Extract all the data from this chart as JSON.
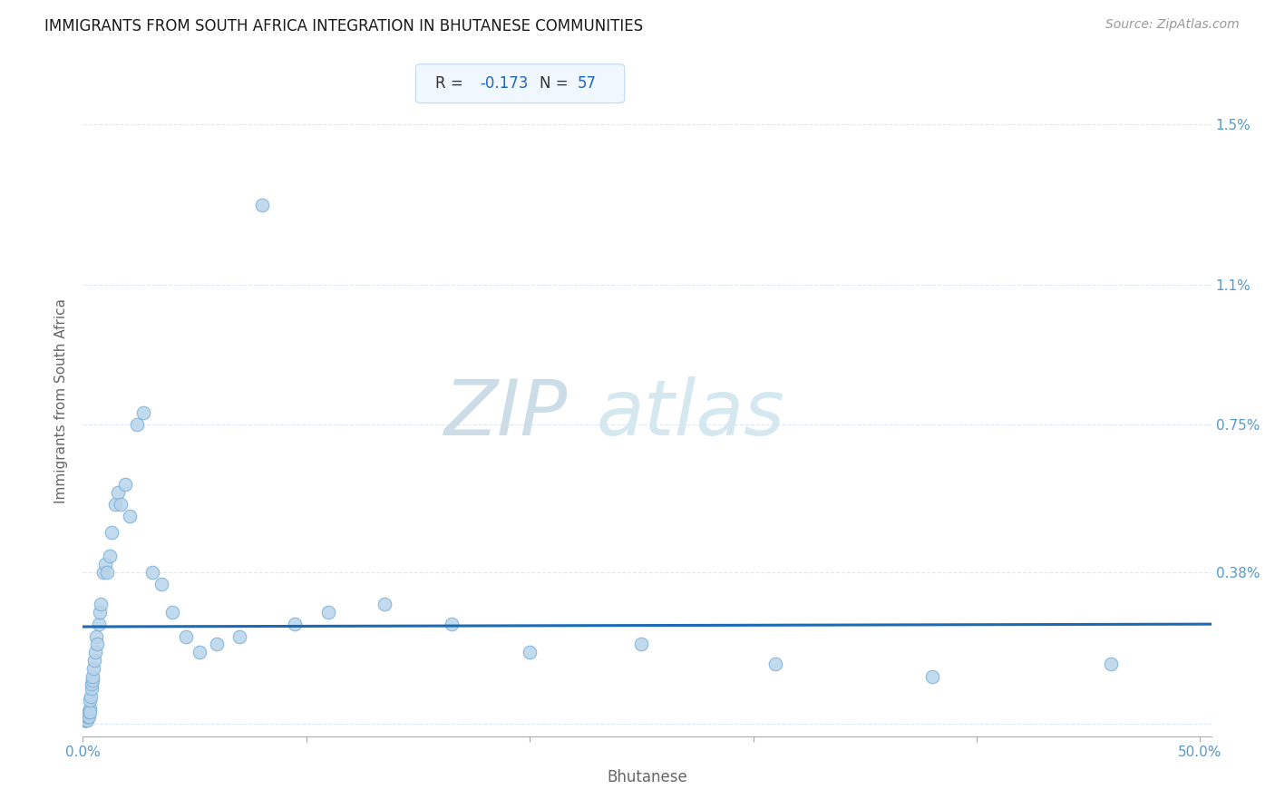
{
  "title": "IMMIGRANTS FROM SOUTH AFRICA INTEGRATION IN BHUTANESE COMMUNITIES",
  "source": "Source: ZipAtlas.com",
  "xlabel": "Bhutanese",
  "ylabel": "Immigrants from South Africa",
  "R_val": "-0.173",
  "N_val": "57",
  "xlim": [
    0.0,
    0.505
  ],
  "ylim": [
    -0.0003,
    0.0165
  ],
  "ytick_vals": [
    0.0,
    0.0038,
    0.0075,
    0.011,
    0.015
  ],
  "ytick_labels": [
    "",
    "0.38%",
    "0.75%",
    "1.1%",
    "1.5%"
  ],
  "xtick_vals": [
    0.0,
    0.1,
    0.2,
    0.3,
    0.4,
    0.5
  ],
  "xtick_labels": [
    "0.0%",
    "",
    "",
    "",
    "",
    "50.0%"
  ],
  "scatter_color": "#b8d4ea",
  "scatter_edge_color": "#7ab0d8",
  "line_color": "#1a6ab5",
  "title_color": "#1a1a1a",
  "axis_label_color": "#666666",
  "tick_label_color": "#5599cc",
  "grid_color": "#dde8f4",
  "annotation_box_color": "#f0f7ff",
  "annotation_border_color": "#c0d8f0",
  "scatter_x": [
    0.0005,
    0.0007,
    0.001,
    0.0012,
    0.0015,
    0.0015,
    0.0018,
    0.002,
    0.0022,
    0.0025,
    0.0025,
    0.0028,
    0.003,
    0.003,
    0.0032,
    0.0035,
    0.0038,
    0.004,
    0.0042,
    0.0045,
    0.0048,
    0.005,
    0.0055,
    0.006,
    0.0065,
    0.007,
    0.0075,
    0.008,
    0.009,
    0.01,
    0.011,
    0.012,
    0.013,
    0.0145,
    0.0155,
    0.017,
    0.019,
    0.021,
    0.024,
    0.027,
    0.031,
    0.035,
    0.04,
    0.046,
    0.052,
    0.06,
    0.07,
    0.08,
    0.095,
    0.11,
    0.135,
    0.165,
    0.2,
    0.25,
    0.31,
    0.38,
    0.46
  ],
  "scatter_y": [
    0.0001,
    0.0001,
    0.0001,
    0.0001,
    0.0001,
    0.0001,
    0.0001,
    0.0002,
    0.0002,
    0.0003,
    0.0002,
    0.0003,
    0.0004,
    0.0003,
    0.0006,
    0.0007,
    0.0009,
    0.001,
    0.0011,
    0.0012,
    0.0014,
    0.0016,
    0.0018,
    0.0022,
    0.002,
    0.0025,
    0.0028,
    0.003,
    0.0038,
    0.004,
    0.0038,
    0.0042,
    0.0048,
    0.0055,
    0.0058,
    0.0055,
    0.006,
    0.0052,
    0.0075,
    0.0078,
    0.0038,
    0.0035,
    0.0028,
    0.0022,
    0.0018,
    0.002,
    0.0022,
    0.013,
    0.0025,
    0.0028,
    0.003,
    0.0025,
    0.0018,
    0.002,
    0.0015,
    0.0012,
    0.0015
  ]
}
